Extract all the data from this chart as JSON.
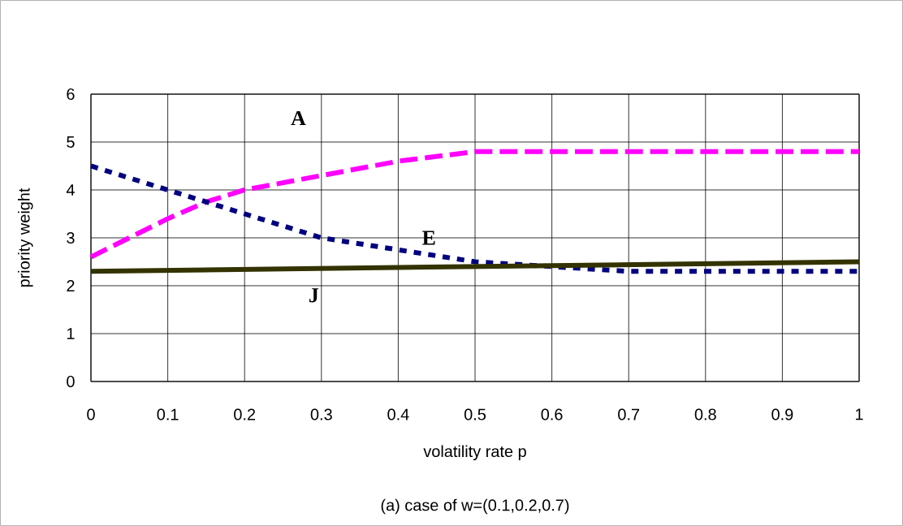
{
  "chart_data": {
    "type": "line",
    "xlabel": "volatility rate p",
    "ylabel": "priority weight",
    "x": [
      0,
      0.05,
      0.1,
      0.15,
      0.2,
      0.3,
      0.4,
      0.5,
      0.6,
      0.7,
      0.8,
      0.9,
      1
    ],
    "series": [
      {
        "name": "A",
        "color": "#ff00ff",
        "line_style": "dashed",
        "values": [
          2.6,
          3.0,
          3.4,
          3.75,
          4.0,
          4.3,
          4.6,
          4.8,
          4.8,
          4.8,
          4.8,
          4.8,
          4.8
        ]
      },
      {
        "name": "E",
        "color": "#000080",
        "line_style": "dotted",
        "values": [
          4.5,
          4.25,
          4.0,
          3.75,
          3.5,
          3.0,
          2.75,
          2.5,
          2.4,
          2.3,
          2.3,
          2.3,
          2.3
        ]
      },
      {
        "name": "J",
        "color": "#333300",
        "line_style": "solid",
        "x": [
          0,
          1
        ],
        "values": [
          2.3,
          2.5
        ]
      }
    ],
    "xlim": [
      0,
      1
    ],
    "ylim": [
      0,
      6
    ],
    "xticks": [
      0,
      0.1,
      0.2,
      0.3,
      0.4,
      0.5,
      0.6,
      0.7,
      0.8,
      0.9,
      1
    ],
    "yticks": [
      0,
      1,
      2,
      3,
      4,
      5,
      6
    ],
    "grid": true,
    "marker": "none",
    "annotations": [
      "(a) case of w=(0.1,0.2,0.7)"
    ]
  }
}
